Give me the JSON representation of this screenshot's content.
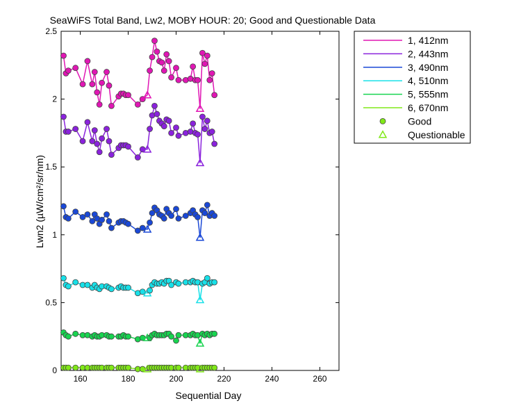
{
  "chart_data": {
    "type": "line",
    "title": "SeaWiFS Total Band, Lw2, MOBY HOUR: 20;  Good and Questionable Data",
    "xlabel": "Sequential Day",
    "ylabel": "Lwn2 (µW/cm²/sr/nm)",
    "xlim": [
      152,
      268
    ],
    "ylim": [
      0,
      2.5
    ],
    "xticks": [
      160,
      180,
      200,
      220,
      240,
      260
    ],
    "xtick_labels": [
      "160",
      "180",
      "200",
      "220",
      "240",
      "260"
    ],
    "yticks": [
      0,
      0.5,
      1,
      1.5,
      2,
      2.5
    ],
    "ytick_labels": [
      "0",
      "0.5",
      "1",
      "1.5",
      "2",
      "2.5"
    ],
    "days": [
      153,
      154,
      155,
      158,
      161,
      163,
      165,
      166,
      167,
      168,
      169,
      171,
      172,
      173,
      176,
      177,
      178,
      179,
      180,
      184,
      186,
      188,
      189,
      190,
      191,
      192,
      193,
      194,
      195,
      196,
      197,
      198,
      200,
      201,
      204,
      206,
      207,
      208,
      209,
      210,
      211,
      212,
      213,
      214,
      215,
      216
    ],
    "series": [
      {
        "name": "1, 412nm",
        "color": "#e016b4",
        "values": [
          2.32,
          2.19,
          2.21,
          2.23,
          2.11,
          2.28,
          2.11,
          2.2,
          2.05,
          1.96,
          2.12,
          2.2,
          2.1,
          1.95,
          2.02,
          2.04,
          2.04,
          2.03,
          2.03,
          1.96,
          2.0,
          2.03,
          2.21,
          2.31,
          2.43,
          2.35,
          2.28,
          2.27,
          2.21,
          2.33,
          2.28,
          2.16,
          2.23,
          2.14,
          2.14,
          2.15,
          2.24,
          2.14,
          2.14,
          1.93,
          2.34,
          2.26,
          2.32,
          2.14,
          2.19,
          2.03
        ]
      },
      {
        "name": "2, 443nm",
        "color": "#8a22dc",
        "values": [
          1.87,
          1.76,
          1.76,
          1.78,
          1.69,
          1.83,
          1.69,
          1.77,
          1.67,
          1.61,
          1.71,
          1.78,
          1.69,
          1.59,
          1.64,
          1.66,
          1.66,
          1.66,
          1.65,
          1.57,
          1.63,
          1.63,
          1.78,
          1.88,
          1.95,
          1.89,
          1.84,
          1.82,
          1.8,
          1.85,
          1.84,
          1.75,
          1.79,
          1.73,
          1.75,
          1.76,
          1.82,
          1.75,
          1.74,
          1.53,
          1.87,
          1.78,
          1.84,
          1.75,
          1.76,
          1.67
        ]
      },
      {
        "name": "3, 490nm",
        "color": "#1a48d6",
        "values": [
          1.21,
          1.13,
          1.12,
          1.17,
          1.13,
          1.15,
          1.1,
          1.15,
          1.12,
          1.08,
          1.11,
          1.15,
          1.1,
          1.05,
          1.09,
          1.1,
          1.1,
          1.09,
          1.08,
          1.03,
          1.05,
          1.04,
          1.09,
          1.16,
          1.2,
          1.18,
          1.15,
          1.14,
          1.12,
          1.19,
          1.16,
          1.14,
          1.19,
          1.12,
          1.14,
          1.16,
          1.18,
          1.15,
          1.13,
          0.98,
          1.18,
          1.16,
          1.22,
          1.14,
          1.16,
          1.14
        ]
      },
      {
        "name": "4, 510nm",
        "color": "#18e0e8",
        "values": [
          0.68,
          0.63,
          0.62,
          0.65,
          0.63,
          0.63,
          0.61,
          0.63,
          0.61,
          0.6,
          0.62,
          0.62,
          0.61,
          0.6,
          0.61,
          0.62,
          0.61,
          0.61,
          0.61,
          0.57,
          0.58,
          0.57,
          0.59,
          0.63,
          0.65,
          0.64,
          0.64,
          0.65,
          0.64,
          0.66,
          0.66,
          0.63,
          0.65,
          0.64,
          0.65,
          0.65,
          0.66,
          0.65,
          0.65,
          0.52,
          0.64,
          0.65,
          0.68,
          0.64,
          0.65,
          0.65
        ]
      },
      {
        "name": "5, 555nm",
        "color": "#18d450",
        "values": [
          0.28,
          0.26,
          0.25,
          0.27,
          0.26,
          0.26,
          0.25,
          0.26,
          0.25,
          0.25,
          0.26,
          0.26,
          0.25,
          0.25,
          0.25,
          0.25,
          0.26,
          0.25,
          0.25,
          0.23,
          0.24,
          0.24,
          0.24,
          0.26,
          0.27,
          0.26,
          0.26,
          0.26,
          0.26,
          0.27,
          0.27,
          0.25,
          0.22,
          0.26,
          0.26,
          0.26,
          0.27,
          0.26,
          0.26,
          0.2,
          0.27,
          0.26,
          0.27,
          0.26,
          0.27,
          0.27
        ]
      },
      {
        "name": "6, 670nm",
        "color": "#80e818",
        "values": [
          0.02,
          0.02,
          0.02,
          0.02,
          0.02,
          0.02,
          0.02,
          0.02,
          0.02,
          0.02,
          0.02,
          0.02,
          0.02,
          0.02,
          0.02,
          0.02,
          0.02,
          0.02,
          0.02,
          0.01,
          0.01,
          0.01,
          0.02,
          0.02,
          0.02,
          0.02,
          0.02,
          0.02,
          0.02,
          0.02,
          0.02,
          0.02,
          0.02,
          0.02,
          0.02,
          0.02,
          0.02,
          0.02,
          0.02,
          0.01,
          0.02,
          0.02,
          0.02,
          0.02,
          0.02,
          0.02
        ]
      }
    ],
    "questionable_days": [
      188,
      210
    ],
    "legend": {
      "position": "outside-right",
      "entries": [
        "1, 412nm",
        "2, 443nm",
        "3, 490nm",
        "4, 510nm",
        "5, 555nm",
        "6, 670nm",
        "Good",
        "Questionable"
      ],
      "good_label": "Good",
      "questionable_label": "Questionable",
      "marker_fill": "#80e818"
    }
  }
}
